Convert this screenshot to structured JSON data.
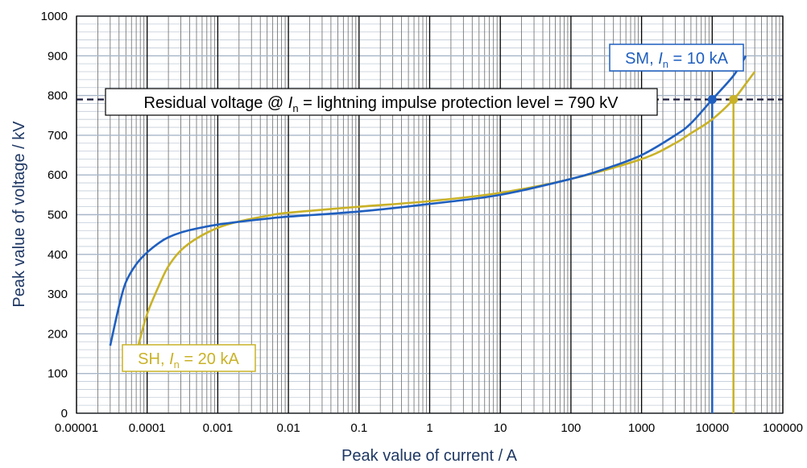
{
  "chart_data": {
    "type": "line",
    "xscale": "log",
    "xlim": [
      1e-05,
      100000
    ],
    "ylim": [
      0,
      1000
    ],
    "xlabel": "Peak value of current / A",
    "ylabel": "Peak value of voltage / kV",
    "x_tick_labels": [
      "0.00001",
      "0.0001",
      "0.001",
      "0.01",
      "0.1",
      "1",
      "10",
      "100",
      "1000",
      "10000",
      "100000"
    ],
    "y_ticks": [
      0,
      100,
      200,
      300,
      400,
      500,
      600,
      700,
      800,
      900,
      1000
    ],
    "y_tick_labels": [
      "0",
      "100",
      "200",
      "300",
      "400",
      "500",
      "600",
      "700",
      "800",
      "900",
      "1000"
    ],
    "grid": true,
    "series": [
      {
        "key": "SM",
        "color": "#1f5fbf",
        "x": [
          3e-05,
          4e-05,
          5e-05,
          7e-05,
          0.0001,
          0.00015,
          0.0002,
          0.0003,
          0.0005,
          0.001,
          0.002,
          0.005,
          0.01,
          0.1,
          1,
          10,
          100,
          300,
          1000,
          3000,
          5000,
          10000,
          20000,
          30000
        ],
        "y": [
          170,
          270,
          330,
          375,
          405,
          430,
          443,
          455,
          465,
          475,
          482,
          490,
          495,
          508,
          527,
          550,
          590,
          615,
          650,
          700,
          730,
          790,
          850,
          900
        ]
      },
      {
        "key": "SH",
        "color": "#c9b227",
        "x": [
          7.5e-05,
          0.0001,
          0.00015,
          0.0002,
          0.0003,
          0.0005,
          0.001,
          0.002,
          0.005,
          0.01,
          0.1,
          1,
          10,
          100,
          1000,
          3000,
          5000,
          10000,
          20000,
          30000,
          40000
        ],
        "y": [
          170,
          250,
          325,
          370,
          410,
          440,
          467,
          483,
          497,
          505,
          520,
          534,
          555,
          590,
          640,
          680,
          705,
          740,
          790,
          830,
          860
        ]
      }
    ],
    "reference_line": {
      "y": 790,
      "color": "#1a1a3a"
    },
    "markers": [
      {
        "x": 10000,
        "y": 790,
        "color": "#1f5fbf"
      },
      {
        "x": 20000,
        "y": 790,
        "color": "#c9b227"
      }
    ],
    "annotations": {
      "main_pre": "Residual voltage @ ",
      "main_I": "I",
      "main_sub": "n",
      "main_post": " = lightning impulse protection level = 790 kV",
      "sm_pre": "SM, ",
      "sm_I": "I",
      "sm_sub": "n",
      "sm_post": " = 10 kA",
      "sh_pre": "SH, ",
      "sh_I": "I",
      "sh_sub": "n",
      "sh_post": " = 20 kA"
    }
  }
}
